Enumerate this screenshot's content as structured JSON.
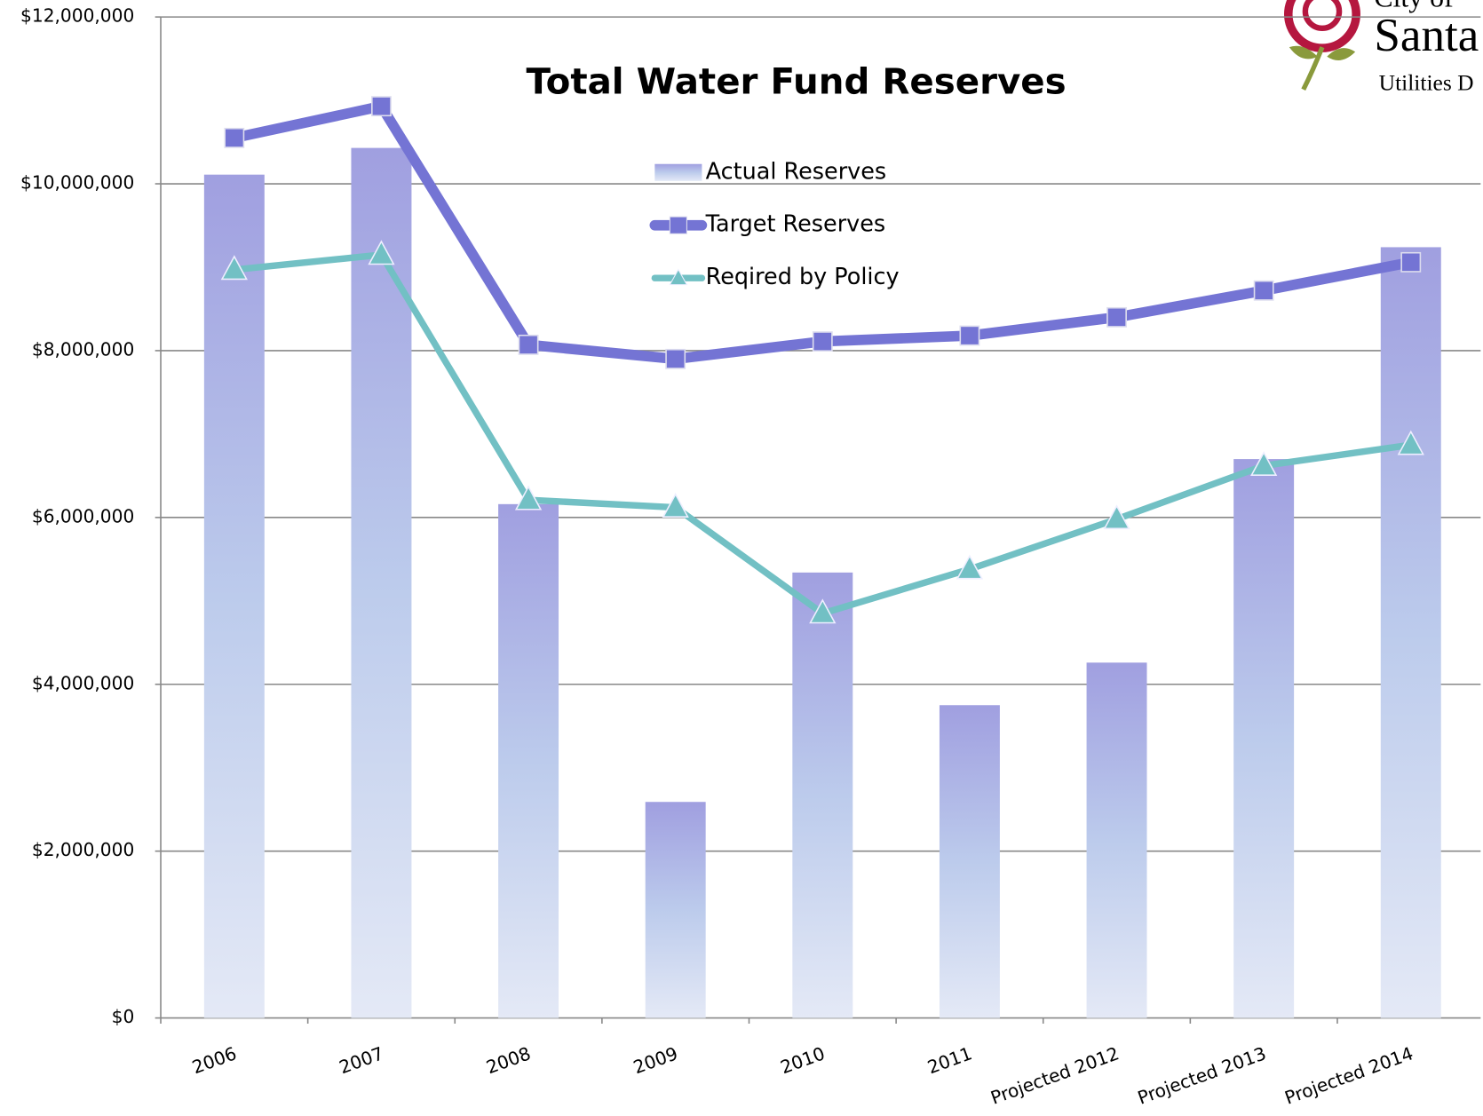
{
  "chart_data": {
    "type": "bar_line",
    "title": "Total Water Fund Reserves",
    "categories": [
      "2006",
      "2007",
      "2008",
      "2009",
      "2010",
      "2011",
      "Projected 2012",
      "Projected 2013",
      "Projected 2014"
    ],
    "series": [
      {
        "name": "Actual Reserves",
        "type": "bar",
        "color": "#a09fe0",
        "values": [
          10110000,
          10430000,
          6160000,
          2590000,
          5340000,
          3750000,
          4260000,
          6700000,
          9240000
        ]
      },
      {
        "name": "Target Reserves",
        "type": "line",
        "marker": "square",
        "color": "#7474d4",
        "values": [
          10550000,
          10930000,
          8070000,
          7900000,
          8110000,
          8180000,
          8400000,
          8720000,
          9060000
        ]
      },
      {
        "name": "Reqired by Policy",
        "type": "line",
        "marker": "triangle",
        "color": "#72c0c4",
        "values": [
          8970000,
          9150000,
          6210000,
          6120000,
          4850000,
          5380000,
          5980000,
          6620000,
          6870000
        ]
      }
    ],
    "ylim": [
      0,
      12000000
    ],
    "yticks": [
      {
        "value": 0,
        "label": "$0"
      },
      {
        "value": 2000000,
        "label": "$2,000,000"
      },
      {
        "value": 4000000,
        "label": "$4,000,000"
      },
      {
        "value": 6000000,
        "label": "$6,000,000"
      },
      {
        "value": 8000000,
        "label": "$8,000,000"
      },
      {
        "value": 10000000,
        "label": "$10,000,000"
      },
      {
        "value": 12000000,
        "label": "$12,000,000"
      }
    ],
    "grid": true,
    "logo": [
      "City of",
      "Santa",
      "Utilities D"
    ]
  }
}
